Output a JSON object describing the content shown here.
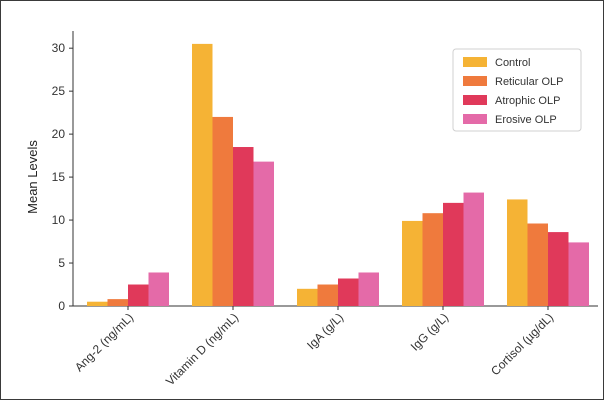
{
  "chart_data": {
    "type": "bar",
    "categories": [
      "Ang-2 (ng/mL)",
      "Vitamin D (ng/mL)",
      "IgA (g/L)",
      "IgG (g/L)",
      "Cortisol (µg/dL)"
    ],
    "series": [
      {
        "name": "Control",
        "color": "#f5b335",
        "values": [
          0.5,
          30.5,
          2.0,
          9.9,
          12.4
        ]
      },
      {
        "name": "Reticular OLP",
        "color": "#ef7a3d",
        "values": [
          0.8,
          22.0,
          2.5,
          10.8,
          9.6
        ]
      },
      {
        "name": "Atrophic OLP",
        "color": "#e0395a",
        "values": [
          2.5,
          18.5,
          3.2,
          12.0,
          8.6
        ]
      },
      {
        "name": "Erosive OLP",
        "color": "#e46aa8",
        "values": [
          3.9,
          16.8,
          3.9,
          13.2,
          7.4
        ]
      }
    ],
    "title": "",
    "xlabel": "",
    "ylabel": "Mean Levels",
    "ylim": [
      0,
      32
    ],
    "yticks": [
      0,
      5,
      10,
      15,
      20,
      25,
      30
    ],
    "grid": false,
    "legend_position": "top-right"
  }
}
